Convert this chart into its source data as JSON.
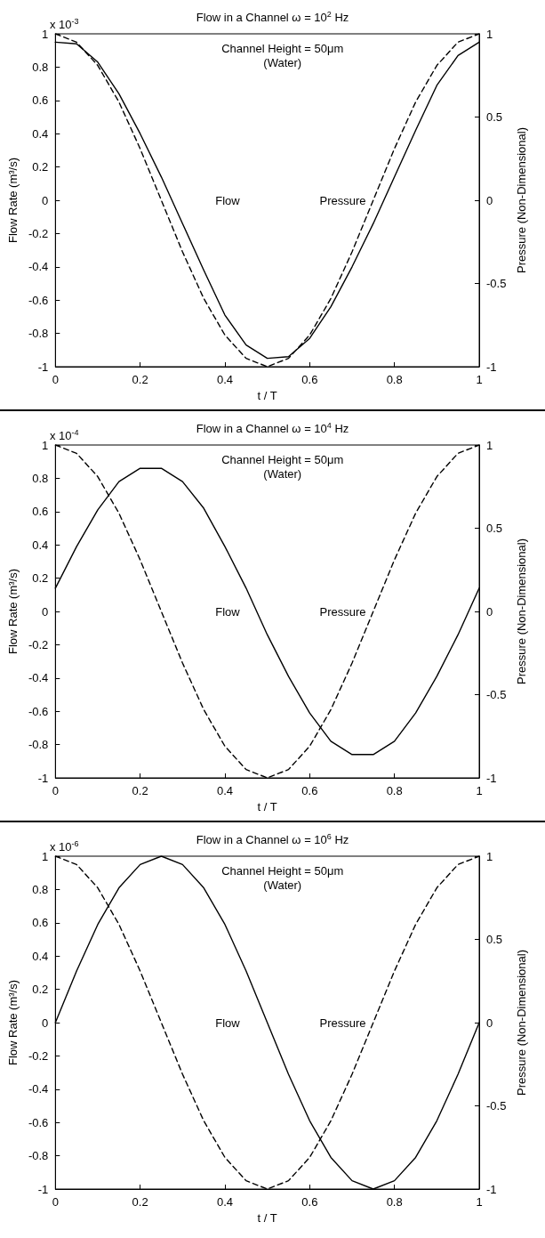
{
  "chart_data": [
    {
      "type": "line",
      "title": "Flow in a Channel ω = 10$^{2}$ Hz",
      "xlabel": "t / T",
      "ylabel": "Flow Rate (m³/s)",
      "y2label": "Pressure (Non-Dimensional)",
      "x": [
        0,
        0.05,
        0.1,
        0.15,
        0.2,
        0.25,
        0.3,
        0.35,
        0.4,
        0.45,
        0.5,
        0.55,
        0.6,
        0.65,
        0.7,
        0.75,
        0.8,
        0.85,
        0.9,
        0.95,
        1
      ],
      "series": [
        {
          "color": "#000000",
          "line_style": "solid",
          "values": [
            0.95,
            0.94,
            0.83,
            0.64,
            0.4,
            0.14,
            -0.14,
            -0.42,
            -0.69,
            -0.87,
            -0.95,
            -0.94,
            -0.83,
            -0.64,
            -0.4,
            -0.14,
            0.14,
            0.42,
            0.69,
            0.87,
            0.95
          ]
        },
        {
          "color": "#000000",
          "line_style": "dashed",
          "axis": "y2",
          "values": [
            1,
            0.95,
            0.81,
            0.59,
            0.31,
            0,
            -0.31,
            -0.59,
            -0.81,
            -0.95,
            -1,
            -0.95,
            -0.81,
            -0.59,
            -0.31,
            0,
            0.31,
            0.59,
            0.81,
            0.95,
            1
          ]
        }
      ],
      "xlim": [
        0,
        1
      ],
      "xticks": [
        0,
        0.2,
        0.4,
        0.6,
        0.8,
        1
      ],
      "ylim": [
        -1,
        1
      ],
      "yticks": [
        -1,
        -0.8,
        -0.6,
        -0.4,
        -0.2,
        0,
        0.2,
        0.4,
        0.6,
        0.8,
        1
      ],
      "y2lim": [
        -1,
        1
      ],
      "y2ticks": [
        -1,
        -0.5,
        0,
        0.5,
        1
      ],
      "marker": "none",
      "grid": false,
      "annotations": [
        "x 10$^{-3}$",
        "Channel Height = 50μm",
        "(Water)",
        "Flow",
        "Pressure"
      ]
    },
    {
      "type": "line",
      "title": "Flow in a Channel ω = 10$^{4}$ Hz",
      "xlabel": "t / T",
      "ylabel": "Flow Rate (m³/s)",
      "y2label": "Pressure (Non-Dimensional)",
      "x": [
        0,
        0.05,
        0.1,
        0.15,
        0.2,
        0.25,
        0.3,
        0.35,
        0.4,
        0.45,
        0.5,
        0.55,
        0.6,
        0.65,
        0.7,
        0.75,
        0.8,
        0.85,
        0.9,
        0.95,
        1
      ],
      "series": [
        {
          "color": "#000000",
          "line_style": "solid",
          "values": [
            0.14,
            0.39,
            0.61,
            0.78,
            0.86,
            0.86,
            0.78,
            0.62,
            0.39,
            0.14,
            -0.14,
            -0.39,
            -0.61,
            -0.78,
            -0.86,
            -0.86,
            -0.78,
            -0.61,
            -0.39,
            -0.14,
            0.14
          ]
        },
        {
          "color": "#000000",
          "line_style": "dashed",
          "axis": "y2",
          "values": [
            1,
            0.95,
            0.81,
            0.59,
            0.31,
            0,
            -0.31,
            -0.59,
            -0.81,
            -0.95,
            -1,
            -0.95,
            -0.81,
            -0.59,
            -0.31,
            0,
            0.31,
            0.59,
            0.81,
            0.95,
            1
          ]
        }
      ],
      "xlim": [
        0,
        1
      ],
      "xticks": [
        0,
        0.2,
        0.4,
        0.6,
        0.8,
        1
      ],
      "ylim": [
        -1,
        1
      ],
      "yticks": [
        -1,
        -0.8,
        -0.6,
        -0.4,
        -0.2,
        0,
        0.2,
        0.4,
        0.6,
        0.8,
        1
      ],
      "y2lim": [
        -1,
        1
      ],
      "y2ticks": [
        -1,
        -0.5,
        0,
        0.5,
        1
      ],
      "marker": "none",
      "grid": false,
      "annotations": [
        "x 10$^{-4}$",
        "Channel Height = 50μm",
        "(Water)",
        "Flow",
        "Pressure"
      ]
    },
    {
      "type": "line",
      "title": "Flow in a Channel ω = 10$^{6}$ Hz",
      "xlabel": "t / T",
      "ylabel": "Flow Rate (m³/s)",
      "y2label": "Pressure (Non-Dimensional)",
      "x": [
        0,
        0.05,
        0.1,
        0.15,
        0.2,
        0.25,
        0.3,
        0.35,
        0.4,
        0.45,
        0.5,
        0.55,
        0.6,
        0.65,
        0.7,
        0.75,
        0.8,
        0.85,
        0.9,
        0.95,
        1
      ],
      "series": [
        {
          "color": "#000000",
          "line_style": "solid",
          "values": [
            0,
            0.31,
            0.59,
            0.81,
            0.95,
            1,
            0.95,
            0.81,
            0.59,
            0.31,
            0,
            -0.31,
            -0.59,
            -0.81,
            -0.95,
            -1,
            -0.95,
            -0.81,
            -0.59,
            -0.31,
            0
          ]
        },
        {
          "color": "#000000",
          "line_style": "dashed",
          "axis": "y2",
          "values": [
            1,
            0.95,
            0.81,
            0.59,
            0.31,
            0,
            -0.31,
            -0.59,
            -0.81,
            -0.95,
            -1,
            -0.95,
            -0.81,
            -0.59,
            -0.31,
            0,
            0.31,
            0.59,
            0.81,
            0.95,
            1
          ]
        }
      ],
      "xlim": [
        0,
        1
      ],
      "xticks": [
        0,
        0.2,
        0.4,
        0.6,
        0.8,
        1
      ],
      "ylim": [
        -1,
        1
      ],
      "yticks": [
        -1,
        -0.8,
        -0.6,
        -0.4,
        -0.2,
        0,
        0.2,
        0.4,
        0.6,
        0.8,
        1
      ],
      "y2lim": [
        -1,
        1
      ],
      "y2ticks": [
        -1,
        -0.5,
        0,
        0.5,
        1
      ],
      "marker": "none",
      "grid": false,
      "annotations": [
        "x 10$^{-6}$",
        "Channel Height = 50μm",
        "(Water)",
        "Flow",
        "Pressure"
      ]
    }
  ]
}
